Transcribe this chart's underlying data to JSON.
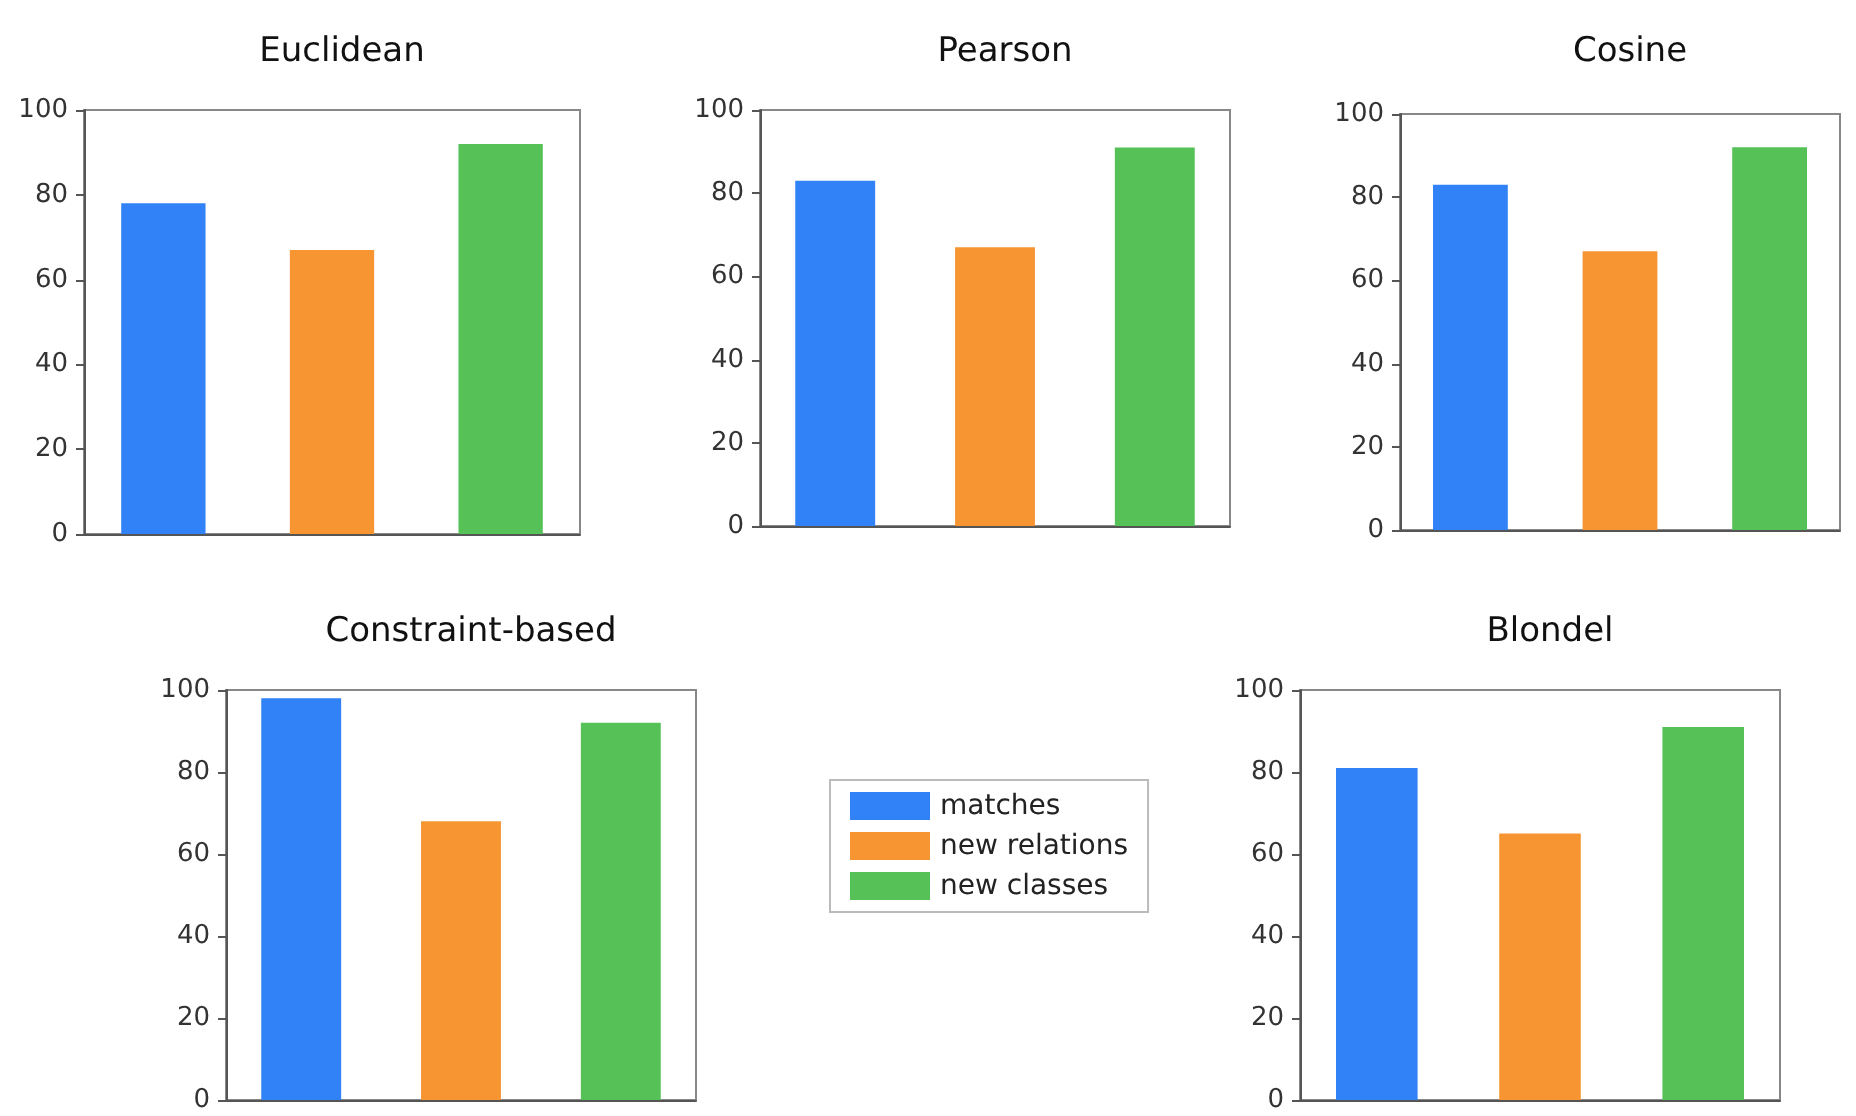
{
  "chart_data": [
    {
      "type": "bar",
      "title": "Euclidean",
      "categories": [
        null
      ],
      "ylim": [
        0,
        100
      ],
      "yticks": [
        0,
        20,
        40,
        60,
        80,
        100
      ],
      "grid": false,
      "series": [
        {
          "color": "#3182f6",
          "values": [
            78
          ]
        },
        {
          "color": "#f79533",
          "values": [
            67
          ]
        },
        {
          "color": "#55c157",
          "values": [
            92
          ]
        }
      ]
    },
    {
      "type": "bar",
      "title": "Pearson",
      "categories": [
        null
      ],
      "ylim": [
        0,
        100
      ],
      "yticks": [
        0,
        20,
        40,
        60,
        80,
        100
      ],
      "grid": false,
      "series": [
        {
          "color": "#3182f6",
          "values": [
            83
          ]
        },
        {
          "color": "#f79533",
          "values": [
            67
          ]
        },
        {
          "color": "#55c157",
          "values": [
            91
          ]
        }
      ]
    },
    {
      "type": "bar",
      "title": "Cosine",
      "categories": [
        null
      ],
      "ylim": [
        0,
        100
      ],
      "yticks": [
        0,
        20,
        40,
        60,
        80,
        100
      ],
      "grid": false,
      "series": [
        {
          "color": "#3182f6",
          "values": [
            83
          ]
        },
        {
          "color": "#f79533",
          "values": [
            67
          ]
        },
        {
          "color": "#55c157",
          "values": [
            92
          ]
        }
      ]
    },
    {
      "type": "bar",
      "title": "Constraint-based",
      "categories": [
        null
      ],
      "ylim": [
        0,
        100
      ],
      "yticks": [
        0,
        20,
        40,
        60,
        80,
        100
      ],
      "grid": false,
      "legend": "right",
      "series": [
        {
          "name": "matches",
          "color": "#3182f6",
          "values": [
            98
          ]
        },
        {
          "name": "new relations",
          "color": "#f79533",
          "values": [
            68
          ]
        },
        {
          "name": "new classes",
          "color": "#55c157",
          "values": [
            92
          ]
        }
      ]
    },
    {
      "type": "bar",
      "title": "Blondel",
      "categories": [
        null
      ],
      "ylim": [
        0,
        100
      ],
      "yticks": [
        0,
        20,
        40,
        60,
        80,
        100
      ],
      "grid": false,
      "series": [
        {
          "color": "#3182f6",
          "values": [
            81
          ]
        },
        {
          "color": "#f79533",
          "values": [
            65
          ]
        },
        {
          "color": "#55c157",
          "values": [
            91
          ]
        }
      ]
    }
  ]
}
